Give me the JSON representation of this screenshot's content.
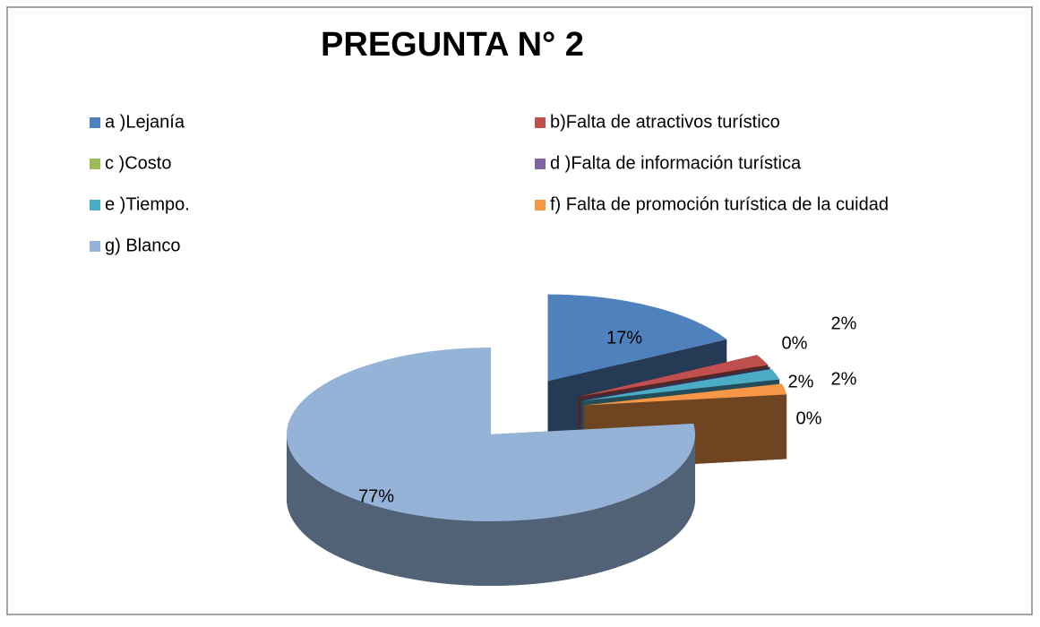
{
  "chart_data": {
    "type": "pie",
    "title": "PREGUNTA N° 2",
    "categories": [
      "a )Lejanía",
      "b)Falta de atractivos turístico",
      "c )Costo",
      "d )Falta de información turística",
      "e )Tiempo.",
      "f) Falta de promoción turística de la cuidad",
      "g) Blanco"
    ],
    "values": [
      17,
      2,
      0,
      0,
      2,
      2,
      77
    ],
    "value_labels": [
      "17%",
      "2%",
      "0%",
      "0%",
      "2%",
      "2%",
      "77%"
    ],
    "colors": [
      "#4f81bd",
      "#c0504d",
      "#9bbb59",
      "#8064a2",
      "#4bacc6",
      "#f79646",
      "#95b3d7"
    ]
  }
}
